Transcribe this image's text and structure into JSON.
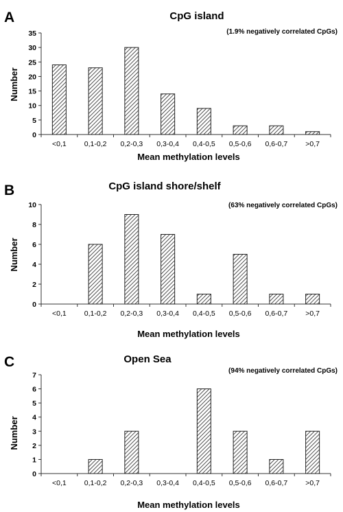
{
  "chart_data": [
    {
      "type": "bar",
      "panel_label": "A",
      "title": "CpG island",
      "annotation": "(1.9% negatively correlated CpGs)",
      "xlabel": "Mean methylation levels",
      "ylabel": "Number",
      "categories": [
        "<0,1",
        "0,1-0,2",
        "0,2-0,3",
        "0,3-0,4",
        "0,4-0,5",
        "0,5-0,6",
        "0,6-0,7",
        ">0,7"
      ],
      "values": [
        24,
        23,
        30,
        14,
        9,
        3,
        3,
        1
      ],
      "ylim": [
        0,
        35
      ],
      "yticks": [
        0,
        5,
        10,
        15,
        20,
        25,
        30,
        35
      ],
      "grid": false,
      "bar_fill": "diagonal-hatch"
    },
    {
      "type": "bar",
      "panel_label": "B",
      "title": "CpG island shore/shelf",
      "annotation": "(63% negatively correlated CpGs)",
      "xlabel": "Mean methylation levels",
      "ylabel": "Number",
      "categories": [
        "<0,1",
        "0,1-0,2",
        "0,2-0,3",
        "0,3-0,4",
        "0,4-0,5",
        "0,5-0,6",
        "0,6-0,7",
        ">0,7"
      ],
      "values": [
        0,
        6,
        9,
        7,
        1,
        5,
        1,
        1
      ],
      "ylim": [
        0,
        10
      ],
      "yticks": [
        0,
        2,
        4,
        6,
        8,
        10
      ],
      "grid": false,
      "bar_fill": "diagonal-hatch"
    },
    {
      "type": "bar",
      "panel_label": "C",
      "title": "Open Sea",
      "annotation": "(94% negatively correlated CpGs)",
      "xlabel": "Mean methylation levels",
      "ylabel": "Number",
      "categories": [
        "<0,1",
        "0,1-0,2",
        "0,2-0,3",
        "0,3-0,4",
        "0,4-0,5",
        "0,5-0,6",
        "0,6-0,7",
        ">0,7"
      ],
      "values": [
        0,
        1,
        3,
        0,
        6,
        3,
        1,
        3
      ],
      "ylim": [
        0,
        7
      ],
      "yticks": [
        0,
        1,
        2,
        3,
        4,
        5,
        6,
        7
      ],
      "grid": false,
      "bar_fill": "diagonal-hatch"
    }
  ]
}
